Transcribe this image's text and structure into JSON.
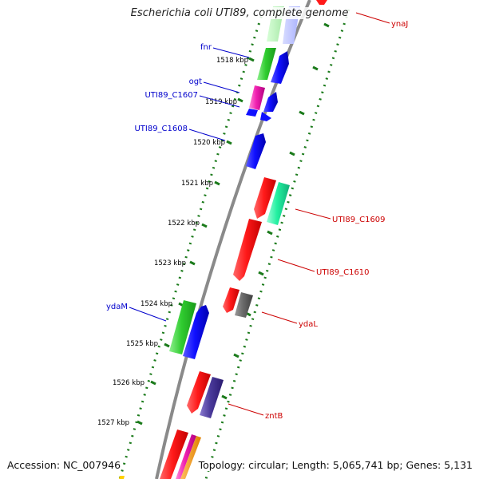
{
  "title": "Escherichia coli UTI89, complete genome",
  "footer": {
    "accession": "Accession: NC_007946",
    "summary": "Topology: circular; Length: 5,065,741 bp; Genes: 5,131"
  },
  "colors": {
    "backbone": "#808080",
    "tick": "#1a7a1a",
    "label_forward": "#0000cc",
    "label_reverse": "#cc0000"
  },
  "ruler": [
    {
      "label": "1518 kbp"
    },
    {
      "label": "1519 kbp"
    },
    {
      "label": "1520 kbp"
    },
    {
      "label": "1521 kbp"
    },
    {
      "label": "1522 kbp"
    },
    {
      "label": "1523 kbp"
    },
    {
      "label": "1524 kbp"
    },
    {
      "label": "1525 kbp"
    },
    {
      "label": "1526 kbp"
    },
    {
      "label": "1527 kbp"
    }
  ],
  "gene_labels": {
    "forward": [
      {
        "name": "fnr"
      },
      {
        "name": "ogt"
      },
      {
        "name": "UTI89_C1607"
      },
      {
        "name": "UTI89_C1608"
      },
      {
        "name": "ydaM"
      }
    ],
    "reverse": [
      {
        "name": "ynaJ"
      },
      {
        "name": "UTI89_C1609"
      },
      {
        "name": "UTI89_C1610"
      },
      {
        "name": "ydaL"
      },
      {
        "name": "zntB"
      }
    ]
  }
}
